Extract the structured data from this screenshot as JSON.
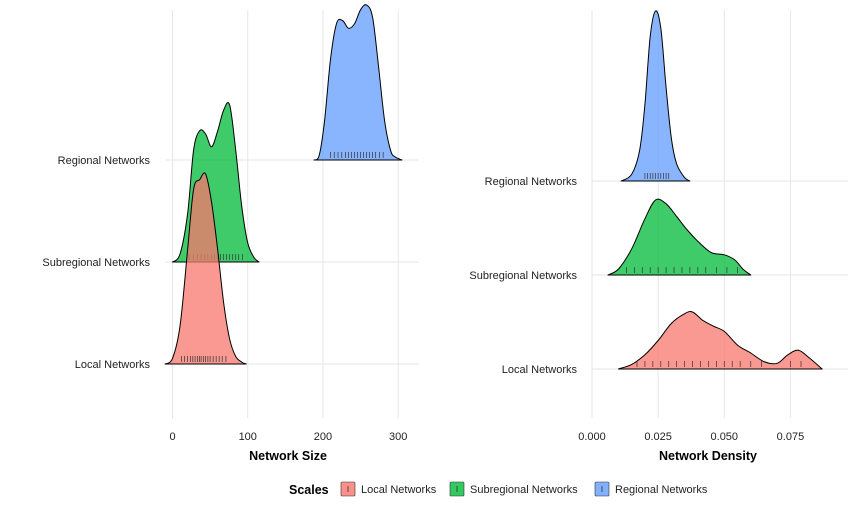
{
  "colors": {
    "local": "#F8766D",
    "subregional": "#00BA38",
    "regional": "#619CFF",
    "grid": "#e6e6e6"
  },
  "legend": {
    "title": "Scales",
    "entries": [
      "Local Networks",
      "Subregional Networks",
      "Regional Networks"
    ]
  },
  "chart_data": [
    {
      "type": "ridgeline",
      "xlabel": "Network Size",
      "xlim": [
        -10,
        325
      ],
      "xticks": [
        0,
        100,
        200,
        300
      ],
      "xtick_labels": [
        "0",
        "100",
        "200",
        "300"
      ],
      "categories": [
        "Local Networks",
        "Subregional Networks",
        "Regional Networks"
      ],
      "series": [
        {
          "name": "Local Networks",
          "density_x": [
            -10,
            0,
            10,
            20,
            28,
            36,
            44,
            52,
            60,
            68,
            76,
            84,
            92,
            98
          ],
          "density_y": [
            0,
            0.03,
            0.2,
            0.6,
            0.92,
            0.97,
            1.0,
            0.85,
            0.6,
            0.32,
            0.13,
            0.04,
            0.01,
            0
          ],
          "rug": [
            12,
            16,
            20,
            24,
            27,
            30,
            33,
            36,
            38,
            41,
            44,
            47,
            50,
            54,
            58,
            62,
            66,
            71
          ]
        },
        {
          "name": "Subregional Networks",
          "density_x": [
            0,
            10,
            20,
            28,
            36,
            44,
            52,
            60,
            68,
            76,
            84,
            92,
            100,
            108,
            115
          ],
          "density_y": [
            0,
            0.05,
            0.3,
            0.7,
            0.82,
            0.8,
            0.72,
            0.82,
            0.95,
            0.98,
            0.7,
            0.35,
            0.12,
            0.03,
            0
          ],
          "rug": [
            22,
            28,
            33,
            38,
            43,
            47,
            52,
            56,
            60,
            64,
            68,
            72,
            76,
            80,
            84,
            88,
            93
          ]
        },
        {
          "name": "Regional Networks",
          "density_x": [
            188,
            195,
            202,
            210,
            218,
            226,
            234,
            242,
            250,
            258,
            266,
            274,
            282,
            290,
            296,
            305
          ],
          "density_y": [
            0,
            0.03,
            0.25,
            0.65,
            0.88,
            0.9,
            0.85,
            0.88,
            0.97,
            1.0,
            0.92,
            0.6,
            0.25,
            0.06,
            0.02,
            0
          ],
          "rug": [
            210,
            215,
            220,
            225,
            230,
            234,
            238,
            242,
            246,
            250,
            254,
            258,
            262,
            266,
            270,
            275,
            280
          ]
        }
      ]
    },
    {
      "type": "ridgeline",
      "xlabel": "Network Density",
      "xlim": [
        0,
        0.096
      ],
      "xticks": [
        0,
        0.025,
        0.05,
        0.075
      ],
      "xtick_labels": [
        "0.000",
        "0.025",
        "0.050",
        "0.075"
      ],
      "categories": [
        "Local Networks",
        "Subregional Networks",
        "Regional Networks"
      ],
      "series": [
        {
          "name": "Local Networks",
          "density_x": [
            0.01,
            0.015,
            0.02,
            0.025,
            0.03,
            0.035,
            0.038,
            0.042,
            0.046,
            0.05,
            0.055,
            0.06,
            0.065,
            0.07,
            0.074,
            0.078,
            0.082,
            0.087
          ],
          "density_y": [
            0,
            0.08,
            0.25,
            0.5,
            0.8,
            0.97,
            1.0,
            0.85,
            0.75,
            0.66,
            0.42,
            0.28,
            0.13,
            0.1,
            0.25,
            0.33,
            0.2,
            0
          ],
          "rug": [
            0.017,
            0.02,
            0.023,
            0.026,
            0.029,
            0.032,
            0.035,
            0.038,
            0.041,
            0.044,
            0.047,
            0.05,
            0.053,
            0.056,
            0.06,
            0.064,
            0.075,
            0.079
          ]
        },
        {
          "name": "Subregional Networks",
          "density_x": [
            0.006,
            0.01,
            0.015,
            0.02,
            0.024,
            0.028,
            0.032,
            0.036,
            0.04,
            0.045,
            0.05,
            0.054,
            0.057,
            0.06
          ],
          "density_y": [
            0,
            0.08,
            0.35,
            0.75,
            1.0,
            0.95,
            0.78,
            0.6,
            0.45,
            0.3,
            0.27,
            0.2,
            0.08,
            0
          ],
          "rug": [
            0.013,
            0.016,
            0.019,
            0.022,
            0.025,
            0.028,
            0.031,
            0.034,
            0.037,
            0.04,
            0.043,
            0.047,
            0.051,
            0.055
          ]
        },
        {
          "name": "Regional Networks",
          "density_x": [
            0.011,
            0.015,
            0.018,
            0.02,
            0.022,
            0.024,
            0.026,
            0.028,
            0.03,
            0.032,
            0.035,
            0.037
          ],
          "density_y": [
            0,
            0.04,
            0.18,
            0.45,
            0.85,
            1.0,
            0.9,
            0.55,
            0.25,
            0.1,
            0.02,
            0
          ],
          "rug": [
            0.02,
            0.021,
            0.022,
            0.023,
            0.024,
            0.025,
            0.026,
            0.027,
            0.028,
            0.029
          ]
        }
      ]
    }
  ]
}
